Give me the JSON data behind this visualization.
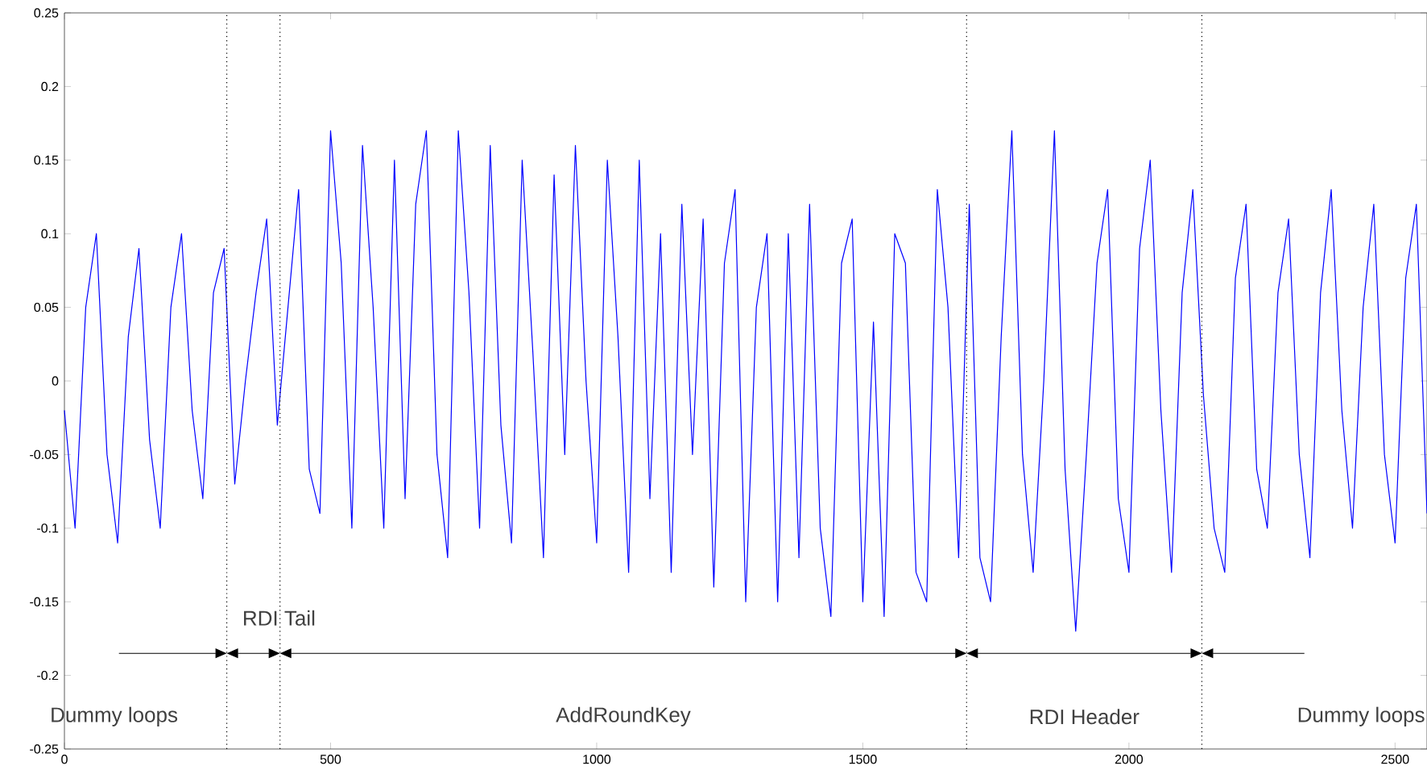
{
  "chart_data": {
    "type": "line",
    "color": "#0000ff",
    "line_style": "solid",
    "marker": "none",
    "grid": false,
    "x": [
      0,
      20,
      40,
      60,
      80,
      100,
      120,
      140,
      160,
      180,
      200,
      220,
      240,
      260,
      280,
      300,
      320,
      340,
      360,
      380,
      400,
      420,
      440,
      460,
      480,
      500,
      520,
      540,
      560,
      580,
      600,
      620,
      640,
      660,
      680,
      700,
      720,
      740,
      760,
      780,
      800,
      820,
      840,
      860,
      880,
      900,
      920,
      940,
      960,
      980,
      1000,
      1020,
      1040,
      1060,
      1080,
      1100,
      1120,
      1140,
      1160,
      1180,
      1200,
      1220,
      1240,
      1260,
      1280,
      1300,
      1320,
      1340,
      1360,
      1380,
      1400,
      1420,
      1440,
      1460,
      1480,
      1500,
      1520,
      1540,
      1560,
      1580,
      1600,
      1620,
      1640,
      1660,
      1680,
      1700,
      1720,
      1740,
      1760,
      1780,
      1800,
      1820,
      1840,
      1860,
      1880,
      1900,
      1920,
      1940,
      1960,
      1980,
      2000,
      2020,
      2040,
      2060,
      2080,
      2100,
      2120,
      2140,
      2160,
      2180,
      2200,
      2220,
      2240,
      2260,
      2280,
      2300,
      2320,
      2340,
      2360,
      2380,
      2400,
      2420,
      2440,
      2460,
      2480,
      2500,
      2520,
      2540,
      2560
    ],
    "values": [
      -0.02,
      -0.1,
      0.05,
      0.1,
      -0.05,
      -0.11,
      0.03,
      0.09,
      -0.04,
      -0.1,
      0.05,
      0.1,
      -0.02,
      -0.08,
      0.06,
      0.09,
      -0.07,
      0.0,
      0.06,
      0.11,
      -0.03,
      0.05,
      0.13,
      -0.06,
      -0.09,
      0.17,
      0.08,
      -0.1,
      0.16,
      0.05,
      -0.1,
      0.15,
      -0.08,
      0.12,
      0.17,
      -0.05,
      -0.12,
      0.17,
      0.06,
      -0.1,
      0.16,
      -0.03,
      -0.11,
      0.15,
      0.02,
      -0.12,
      0.14,
      -0.05,
      0.16,
      0.0,
      -0.11,
      0.15,
      0.03,
      -0.13,
      0.15,
      -0.08,
      0.1,
      -0.13,
      0.12,
      -0.05,
      0.11,
      -0.14,
      0.08,
      0.13,
      -0.15,
      0.05,
      0.1,
      -0.15,
      0.1,
      -0.12,
      0.12,
      -0.1,
      -0.16,
      0.08,
      0.11,
      -0.15,
      0.04,
      -0.16,
      0.1,
      0.08,
      -0.13,
      -0.15,
      0.13,
      0.05,
      -0.12,
      0.12,
      -0.12,
      -0.15,
      0.03,
      0.17,
      -0.05,
      -0.13,
      0.0,
      0.17,
      -0.06,
      -0.17,
      -0.05,
      0.08,
      0.13,
      -0.08,
      -0.13,
      0.09,
      0.15,
      -0.02,
      -0.13,
      0.06,
      0.13,
      -0.01,
      -0.1,
      -0.13,
      0.07,
      0.12,
      -0.06,
      -0.1,
      0.06,
      0.11,
      -0.05,
      -0.12,
      0.06,
      0.13,
      -0.02,
      -0.1,
      0.05,
      0.12,
      -0.05,
      -0.11,
      0.07,
      0.12,
      -0.09
    ],
    "xlim": [
      0,
      2560
    ],
    "ylim": [
      -0.25,
      0.25
    ],
    "xticks": [
      0,
      500,
      1000,
      1500,
      2000,
      2500
    ],
    "yticks": [
      -0.25,
      -0.2,
      -0.15,
      -0.1,
      -0.05,
      0,
      0.05,
      0.1,
      0.15,
      0.2,
      0.25
    ],
    "ref_lines": [
      {
        "axis": "x",
        "value": 305,
        "color": "#000000",
        "line_style": "dotted"
      },
      {
        "axis": "x",
        "value": 405,
        "color": "#000000",
        "line_style": "dotted"
      },
      {
        "axis": "x",
        "value": 1695,
        "color": "#000000",
        "line_style": "dotted"
      },
      {
        "axis": "x",
        "value": 2137,
        "color": "#000000",
        "line_style": "dotted"
      }
    ],
    "annotations": [
      "Dummy loops",
      "RDI Tail",
      "AddRoundKey",
      "RDI Header",
      "Dummy loops"
    ]
  }
}
